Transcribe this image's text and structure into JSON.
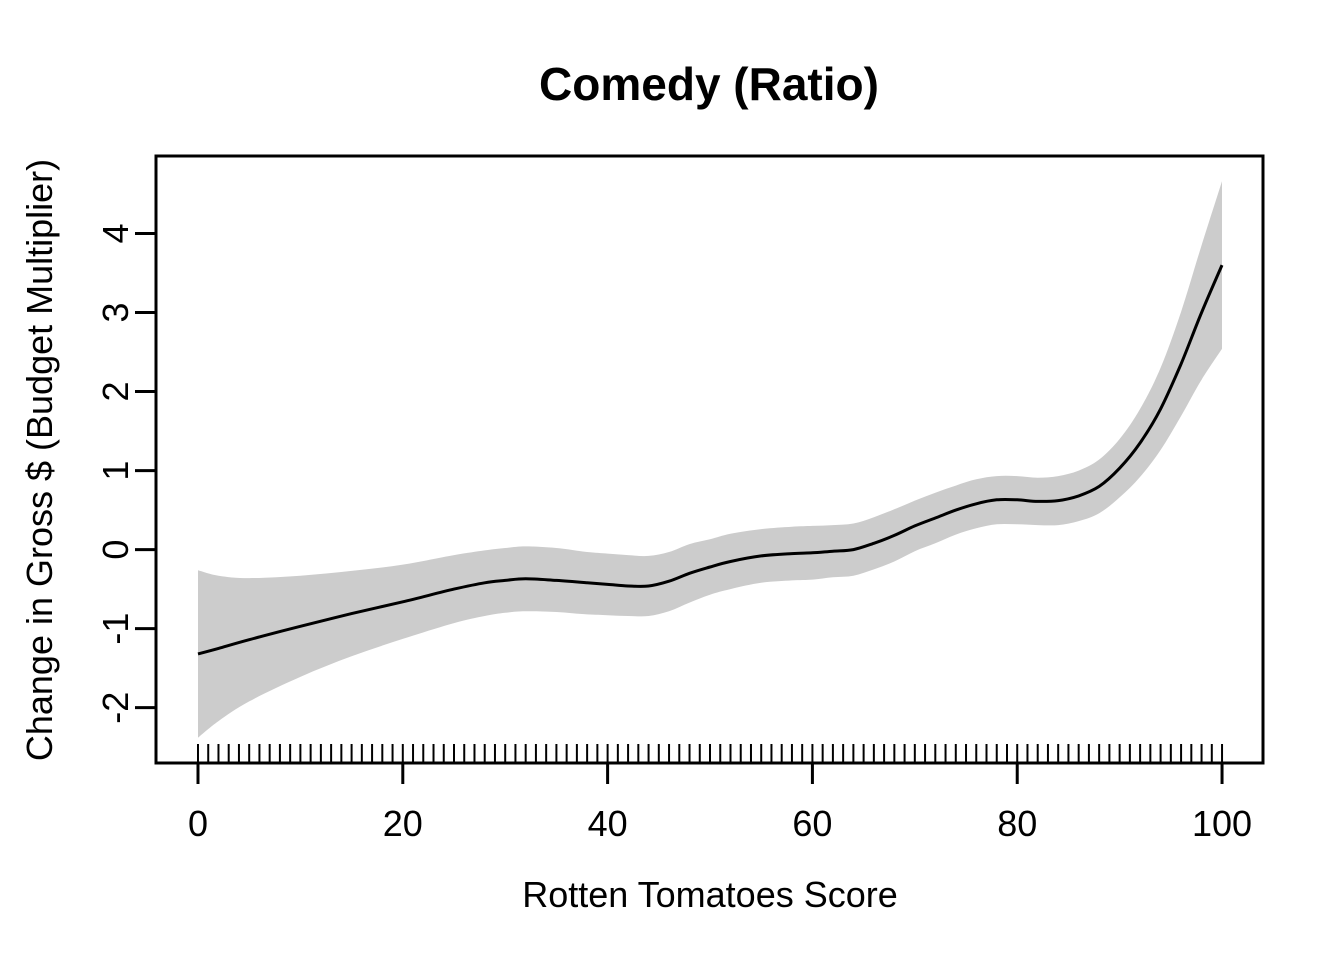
{
  "chart_data": {
    "type": "line",
    "title": "Comedy (Ratio)",
    "xlabel": "Rotten Tomatoes Score",
    "ylabel": "Change in Gross $ (Budget Multiplier)",
    "xlim": [
      -4.1,
      104.0
    ],
    "ylim": [
      -2.7,
      4.98
    ],
    "x_ticks": [
      0,
      20,
      40,
      60,
      80,
      100
    ],
    "y_ticks": [
      -2,
      -1,
      0,
      1,
      2,
      3,
      4
    ],
    "grid": false,
    "legend": "none",
    "line_color": "#000000",
    "band_color": "#cccccc",
    "background_color": "#ffffff",
    "x": [
      0,
      2,
      5,
      10,
      15,
      20,
      25,
      28,
      30,
      32,
      35,
      38,
      40,
      42,
      44,
      46,
      48,
      50,
      52,
      55,
      58,
      60,
      62,
      64,
      66,
      68,
      70,
      72,
      74,
      76,
      78,
      80,
      82,
      84,
      86,
      88,
      90,
      92,
      94,
      96,
      98,
      100
    ],
    "fit": [
      -1.32,
      -1.25,
      -1.14,
      -0.97,
      -0.81,
      -0.66,
      -0.5,
      -0.42,
      -0.39,
      -0.37,
      -0.39,
      -0.42,
      -0.44,
      -0.46,
      -0.46,
      -0.4,
      -0.3,
      -0.22,
      -0.15,
      -0.08,
      -0.05,
      -0.04,
      -0.02,
      0.0,
      0.08,
      0.18,
      0.3,
      0.4,
      0.5,
      0.58,
      0.63,
      0.63,
      0.61,
      0.62,
      0.68,
      0.8,
      1.03,
      1.35,
      1.78,
      2.35,
      3.0,
      3.6
    ],
    "upper": [
      -0.26,
      -0.33,
      -0.36,
      -0.33,
      -0.27,
      -0.19,
      -0.07,
      -0.01,
      0.02,
      0.04,
      0.02,
      -0.03,
      -0.05,
      -0.07,
      -0.08,
      -0.03,
      0.07,
      0.13,
      0.2,
      0.26,
      0.29,
      0.3,
      0.31,
      0.33,
      0.41,
      0.51,
      0.62,
      0.72,
      0.81,
      0.89,
      0.93,
      0.93,
      0.91,
      0.93,
      1.0,
      1.14,
      1.4,
      1.78,
      2.3,
      3.01,
      3.85,
      4.66
    ],
    "lower": [
      -2.38,
      -2.17,
      -1.92,
      -1.61,
      -1.35,
      -1.13,
      -0.93,
      -0.84,
      -0.8,
      -0.78,
      -0.79,
      -0.82,
      -0.83,
      -0.84,
      -0.84,
      -0.78,
      -0.67,
      -0.57,
      -0.5,
      -0.42,
      -0.39,
      -0.38,
      -0.35,
      -0.33,
      -0.25,
      -0.15,
      -0.02,
      0.08,
      0.19,
      0.27,
      0.32,
      0.32,
      0.31,
      0.31,
      0.36,
      0.46,
      0.66,
      0.92,
      1.26,
      1.69,
      2.15,
      2.54
    ],
    "rug_x": [
      0,
      1,
      2,
      3,
      4,
      5,
      6,
      7,
      8,
      9,
      10,
      11,
      12,
      13,
      14,
      15,
      16,
      17,
      18,
      19,
      20,
      21,
      22,
      23,
      24,
      25,
      26,
      27,
      28,
      29,
      30,
      31,
      32,
      33,
      34,
      35,
      36,
      37,
      38,
      39,
      40,
      41,
      42,
      43,
      44,
      45,
      46,
      47,
      48,
      49,
      50,
      51,
      52,
      53,
      54,
      55,
      56,
      57,
      58,
      59,
      60,
      61,
      62,
      63,
      64,
      65,
      66,
      67,
      68,
      69,
      70,
      71,
      72,
      73,
      74,
      75,
      76,
      77,
      78,
      79,
      80,
      81,
      82,
      83,
      84,
      85,
      86,
      87,
      88,
      89,
      90,
      91,
      92,
      93,
      94,
      95,
      96,
      97,
      98,
      99,
      100
    ]
  }
}
